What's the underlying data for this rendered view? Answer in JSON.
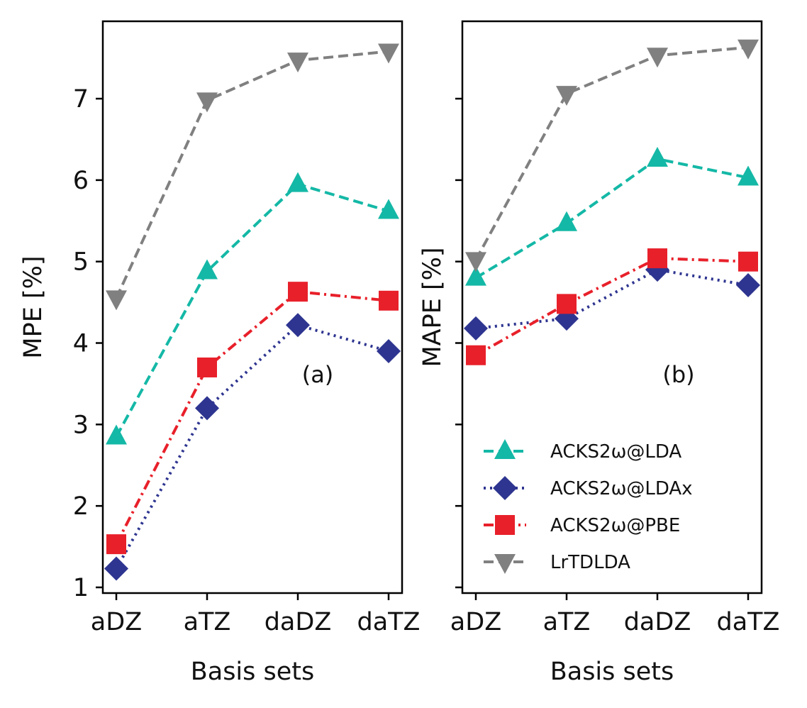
{
  "chart_data": [
    {
      "type": "line",
      "panel_label": "(a)",
      "xlabel": "Basis sets",
      "ylabel": "MPE [%]",
      "categories": [
        "aDZ",
        "aTZ",
        "daDZ",
        "daTZ"
      ],
      "ylim": [
        0.93,
        7.95
      ],
      "yticks": [
        "1",
        "2",
        "3",
        "4",
        "5",
        "6",
        "7"
      ],
      "yticks_labeled": true,
      "series": [
        {
          "name": "ACKS2ω@LDA",
          "color": "#14b8a6",
          "marker": "triangle-up",
          "linestyle": "dashed",
          "values": [
            2.85,
            4.88,
            5.95,
            5.62
          ]
        },
        {
          "name": "ACKS2ω@LDAx",
          "color": "#2e3590",
          "marker": "diamond",
          "linestyle": "dotted",
          "values": [
            1.23,
            3.2,
            4.22,
            3.9
          ]
        },
        {
          "name": "ACKS2ω@PBE",
          "color": "#e8202a",
          "marker": "square",
          "linestyle": "dashdot",
          "values": [
            1.53,
            3.7,
            4.63,
            4.52
          ]
        },
        {
          "name": "LrTDLDA",
          "color": "#808080",
          "marker": "triangle-down",
          "linestyle": "dashed",
          "values": [
            4.55,
            6.98,
            7.47,
            7.58
          ]
        }
      ]
    },
    {
      "type": "line",
      "panel_label": "(b)",
      "xlabel": "Basis sets",
      "ylabel": "MAPE [%]",
      "categories": [
        "aDZ",
        "aTZ",
        "daDZ",
        "daTZ"
      ],
      "ylim": [
        0.93,
        7.95
      ],
      "yticks": [
        "1",
        "2",
        "3",
        "4",
        "5",
        "6",
        "7"
      ],
      "yticks_labeled": false,
      "legend_position": "lower-right",
      "series": [
        {
          "name": "ACKS2ω@LDA",
          "color": "#14b8a6",
          "marker": "triangle-up",
          "linestyle": "dashed",
          "values": [
            4.8,
            5.47,
            6.26,
            6.03
          ]
        },
        {
          "name": "ACKS2ω@LDAx",
          "color": "#2e3590",
          "marker": "diamond",
          "linestyle": "dotted",
          "values": [
            4.18,
            4.3,
            4.9,
            4.71
          ]
        },
        {
          "name": "ACKS2ω@PBE",
          "color": "#e8202a",
          "marker": "square",
          "linestyle": "dashdot",
          "values": [
            3.85,
            4.48,
            5.04,
            5.0
          ]
        },
        {
          "name": "LrTDLDA",
          "color": "#808080",
          "marker": "triangle-down",
          "linestyle": "dashed",
          "values": [
            5.02,
            7.06,
            7.53,
            7.63
          ]
        }
      ]
    }
  ]
}
